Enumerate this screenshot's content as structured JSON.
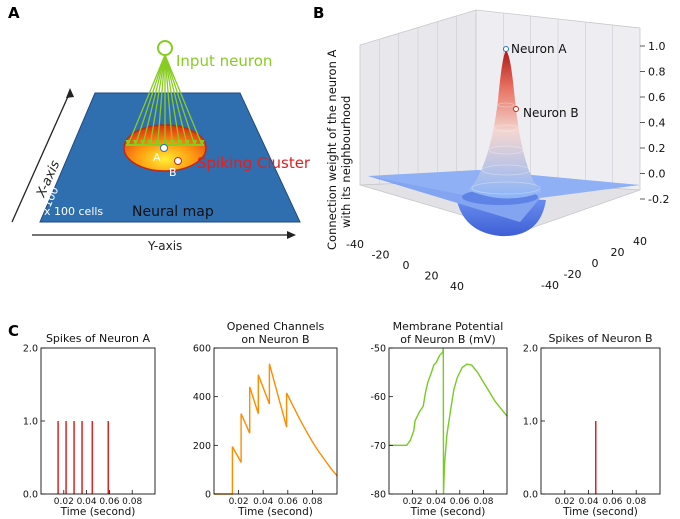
{
  "panel_labels": {
    "a": "A",
    "b": "B",
    "c": "C"
  },
  "panel_a": {
    "input_neuron": "Input neuron",
    "spiking_cluster": "Spiking Cluster",
    "neuron_a": "A",
    "neuron_b": "B",
    "x_axis": "X-axis",
    "y_axis": "Y-axis",
    "count": "100",
    "cells": "x 100 cells",
    "map_label": "Neural map"
  },
  "panel_b": {
    "neuron_a": "Neuron A",
    "neuron_b": "Neuron B",
    "zlabel_line1": "Connection weight of the neuron A",
    "zlabel_line2": "with its neighbourhood",
    "z_ticks": [
      "1.0",
      "0.8",
      "0.6",
      "0.4",
      "0.2",
      "0.0",
      "-0.2"
    ],
    "x_ticks": [
      "-40",
      "-20",
      "0",
      "20",
      "40"
    ],
    "y_ticks": [
      "40",
      "20",
      "0",
      "-20",
      "-40"
    ]
  },
  "chart_data": [
    {
      "type": "spike_raster",
      "title": "Spikes of Neuron A",
      "xlabel": "Time (second)",
      "xlim": [
        0,
        0.1
      ],
      "ylim": [
        0,
        2.0
      ],
      "x_ticks": [
        "0.02",
        "0.04",
        "0.06",
        "0.08"
      ],
      "y_ticks": [
        "0.0",
        "1.0",
        "2.0"
      ],
      "color": "#dd2222",
      "spikes": [
        0.015,
        0.022,
        0.029,
        0.036,
        0.045,
        0.059
      ]
    },
    {
      "type": "line",
      "title_line1": "Opened Channels",
      "title_line2": "on Neuron B",
      "xlabel": "Time (second)",
      "xlim": [
        0,
        0.1
      ],
      "ylim": [
        0,
        600
      ],
      "x_ticks": [
        "0.02",
        "0.04",
        "0.06",
        "0.08"
      ],
      "y_ticks": [
        "0",
        "200",
        "400",
        "600"
      ],
      "color": "#ff8c00",
      "x": [
        0,
        0.015,
        0.015,
        0.022,
        0.022,
        0.029,
        0.029,
        0.036,
        0.036,
        0.045,
        0.045,
        0.059,
        0.059,
        0.065,
        0.07,
        0.075,
        0.08,
        0.085,
        0.09,
        0.095,
        0.1
      ],
      "y": [
        0,
        0,
        195,
        130,
        330,
        250,
        440,
        330,
        490,
        370,
        535,
        275,
        415,
        355,
        305,
        258,
        215,
        175,
        140,
        105,
        75
      ]
    },
    {
      "type": "line",
      "title_line1": "Membrane Potential",
      "title_line2": "of Neuron B (mV)",
      "xlabel": "Time (second)",
      "xlim": [
        0,
        0.1
      ],
      "ylim": [
        -80,
        -50
      ],
      "x_ticks": [
        "0.02",
        "0.04",
        "0.06",
        "0.08"
      ],
      "y_ticks": [
        "-50",
        "-60",
        "-70",
        "-80"
      ],
      "color": "#77cc22",
      "x": [
        0,
        0.015,
        0.018,
        0.021,
        0.022,
        0.026,
        0.029,
        0.031,
        0.033,
        0.036,
        0.038,
        0.04,
        0.043,
        0.045,
        0.0455,
        0.046,
        0.0462,
        0.047,
        0.049,
        0.052,
        0.055,
        0.058,
        0.062,
        0.066,
        0.07,
        0.075,
        0.08,
        0.085,
        0.09,
        0.095,
        0.1
      ],
      "y": [
        -70,
        -70,
        -69,
        -67,
        -65,
        -63,
        -62,
        -59,
        -57,
        -55,
        -53.5,
        -53,
        -51.5,
        -51,
        -51,
        -50,
        -80,
        -74,
        -68,
        -63,
        -58.5,
        -56,
        -54,
        -53.3,
        -53.5,
        -55,
        -57,
        -59,
        -61,
        -62.5,
        -64
      ]
    },
    {
      "type": "spike_raster",
      "title": "Spikes of Neuron B",
      "xlabel": "Time (second)",
      "xlim": [
        0,
        0.1
      ],
      "ylim": [
        0,
        2.0
      ],
      "x_ticks": [
        "0.02",
        "0.04",
        "0.06",
        "0.08"
      ],
      "y_ticks": [
        "0.0",
        "1.0",
        "2.0"
      ],
      "color": "#dd2222",
      "spikes": [
        0.046
      ]
    }
  ]
}
